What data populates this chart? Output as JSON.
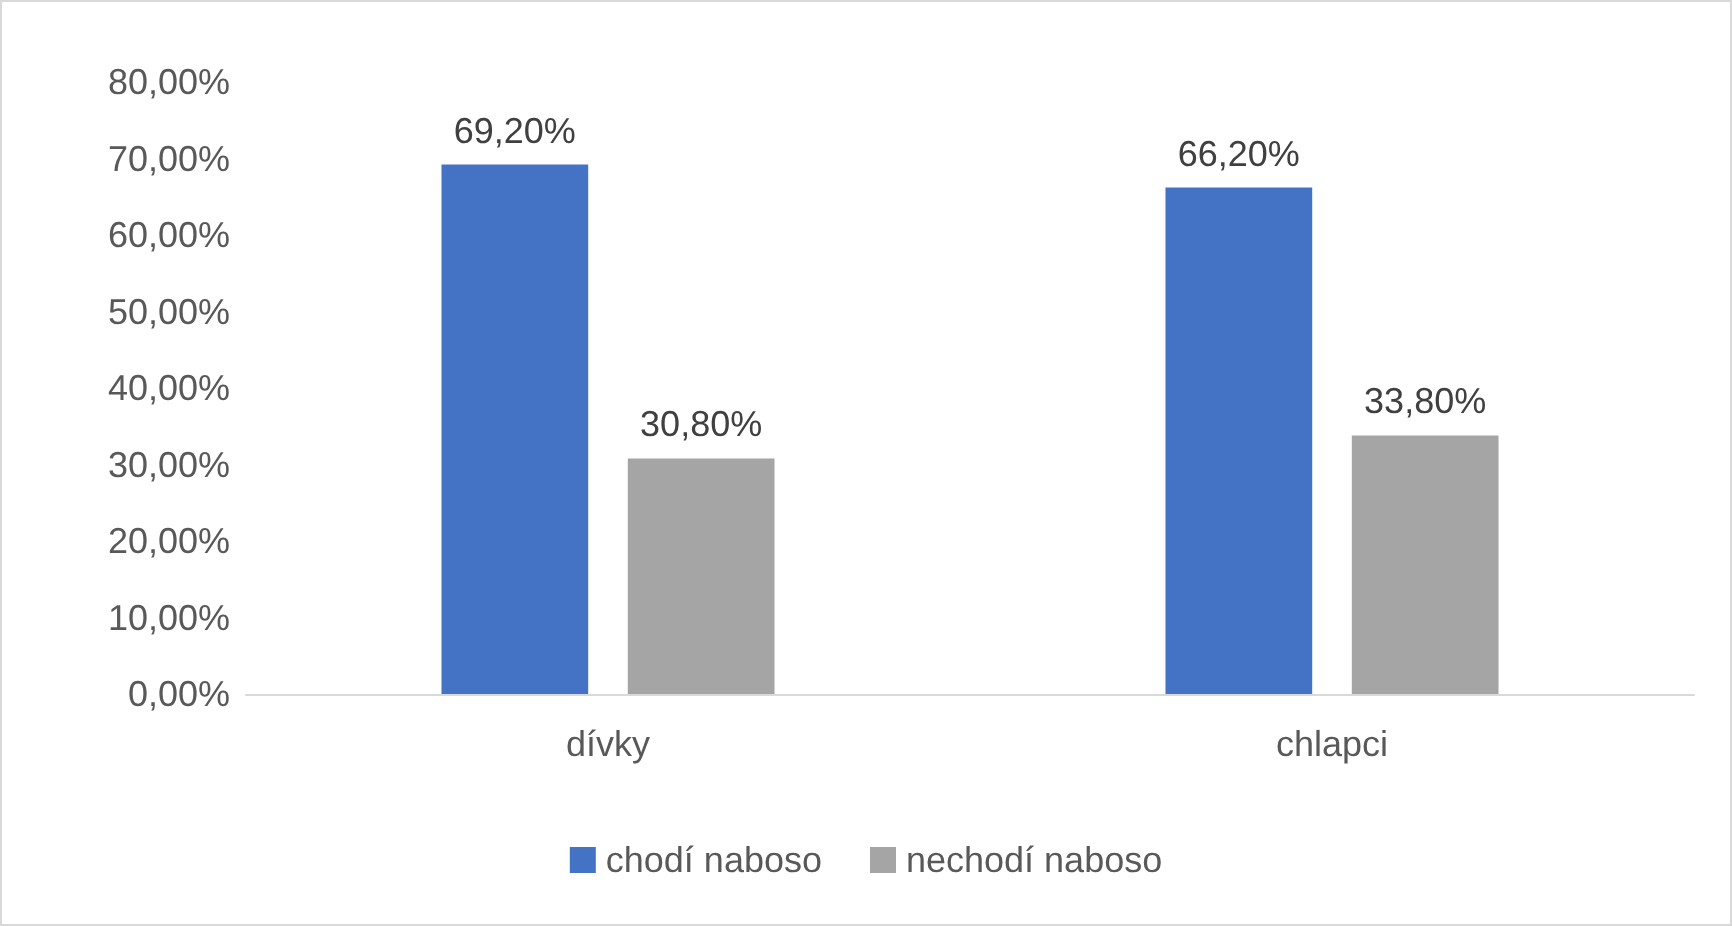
{
  "chart_data": {
    "type": "bar",
    "categories": [
      "dívky",
      "chlapci"
    ],
    "series": [
      {
        "name": "chodí naboso",
        "color": "#4472c4",
        "values": [
          69.2,
          66.2
        ],
        "value_labels": [
          "69,20%",
          "66,20%"
        ]
      },
      {
        "name": "nechodí naboso",
        "color": "#a5a5a5",
        "values": [
          30.8,
          33.8
        ],
        "value_labels": [
          "30,80%",
          "33,80%"
        ]
      }
    ],
    "ylim": [
      0,
      80
    ],
    "yticks": [
      {
        "value": 0,
        "label": "0,00%"
      },
      {
        "value": 10,
        "label": "10,00%"
      },
      {
        "value": 20,
        "label": "20,00%"
      },
      {
        "value": 30,
        "label": "30,00%"
      },
      {
        "value": 40,
        "label": "40,00%"
      },
      {
        "value": 50,
        "label": "50,00%"
      },
      {
        "value": 60,
        "label": "60,00%"
      },
      {
        "value": 70,
        "label": "70,00%"
      },
      {
        "value": 80,
        "label": "80,00%"
      }
    ],
    "grid": false,
    "legend": "bottom"
  }
}
